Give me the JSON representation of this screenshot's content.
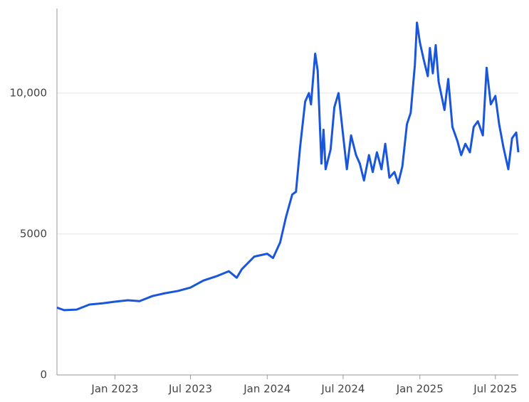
{
  "chart_data": {
    "type": "line",
    "x": [
      "2022-08-15",
      "2022-09-01",
      "2022-10-01",
      "2022-11-01",
      "2022-12-01",
      "2023-01-01",
      "2023-02-01",
      "2023-03-01",
      "2023-04-01",
      "2023-05-01",
      "2023-06-01",
      "2023-07-01",
      "2023-08-01",
      "2023-09-01",
      "2023-10-01",
      "2023-10-20",
      "2023-11-01",
      "2023-12-01",
      "2024-01-01",
      "2024-01-15",
      "2024-02-01",
      "2024-02-15",
      "2024-03-01",
      "2024-03-10",
      "2024-03-20",
      "2024-04-01",
      "2024-04-10",
      "2024-04-15",
      "2024-04-25",
      "2024-05-01",
      "2024-05-10",
      "2024-05-15",
      "2024-05-20",
      "2024-06-01",
      "2024-06-10",
      "2024-06-20",
      "2024-07-01",
      "2024-07-10",
      "2024-07-20",
      "2024-08-01",
      "2024-08-10",
      "2024-08-20",
      "2024-09-01",
      "2024-09-10",
      "2024-09-20",
      "2024-10-01",
      "2024-10-10",
      "2024-10-20",
      "2024-11-01",
      "2024-11-10",
      "2024-11-20",
      "2024-12-01",
      "2024-12-10",
      "2024-12-20",
      "2024-12-25",
      "2025-01-01",
      "2025-01-10",
      "2025-01-20",
      "2025-01-25",
      "2025-02-01",
      "2025-02-08",
      "2025-02-15",
      "2025-03-01",
      "2025-03-10",
      "2025-03-20",
      "2025-04-01",
      "2025-04-10",
      "2025-04-20",
      "2025-05-01",
      "2025-05-10",
      "2025-05-20",
      "2025-06-01",
      "2025-06-10",
      "2025-06-20",
      "2025-07-01",
      "2025-07-10",
      "2025-07-20",
      "2025-08-01",
      "2025-08-10",
      "2025-08-20",
      "2025-08-25"
    ],
    "series": [
      {
        "color": "#1a56db",
        "values": [
          2390,
          2300,
          2320,
          2500,
          2540,
          2600,
          2650,
          2620,
          2800,
          2900,
          2980,
          3100,
          3350,
          3500,
          3680,
          3450,
          3750,
          4200,
          4300,
          4150,
          4700,
          5600,
          6400,
          6500,
          8100,
          9700,
          10000,
          9600,
          11400,
          10800,
          7500,
          8700,
          7300,
          8000,
          9500,
          10000,
          8500,
          7300,
          8500,
          7800,
          7500,
          6900,
          7800,
          7200,
          7900,
          7300,
          8200,
          7000,
          7200,
          6800,
          7400,
          8900,
          9300,
          11000,
          12500,
          11800,
          11200,
          10600,
          11600,
          10700,
          11700,
          10400,
          9400,
          10500,
          8800,
          8300,
          7800,
          8200,
          7900,
          8800,
          9000,
          8500,
          10900,
          9600,
          9900,
          8900,
          8100,
          7300,
          8400,
          8600,
          7900
        ]
      }
    ],
    "xlim": [
      "2022-08-15",
      "2025-08-25"
    ],
    "xticks": [
      {
        "value": "2023-01-01",
        "label": "Jan 2023"
      },
      {
        "value": "2023-07-01",
        "label": "Jul 2023"
      },
      {
        "value": "2024-01-01",
        "label": "Jan 2024"
      },
      {
        "value": "2024-07-01",
        "label": "Jul 2024"
      },
      {
        "value": "2025-01-01",
        "label": "Jan 2025"
      },
      {
        "value": "2025-07-01",
        "label": "Jul 2025"
      }
    ],
    "ylim": [
      0,
      13000
    ],
    "yticks": [
      0,
      5000,
      {
        "value": 10000,
        "label": "10,000"
      }
    ],
    "grid": true
  }
}
